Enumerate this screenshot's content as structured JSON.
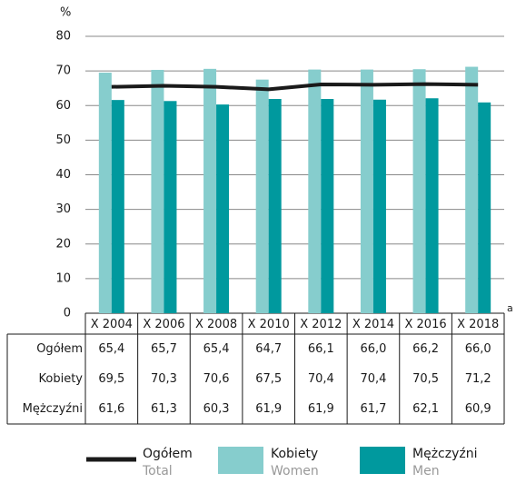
{
  "chart_data": {
    "type": "bar",
    "y_label": "%",
    "axis_note": "a",
    "categories": [
      "X 2004",
      "X 2006",
      "X 2008",
      "X 2010",
      "X 2012",
      "X 2014",
      "X 2016",
      "X 2018"
    ],
    "series": [
      {
        "name": "Ogółem",
        "sublabel": "Total",
        "type": "line",
        "color": "#1a1a1a",
        "values": [
          65.4,
          65.7,
          65.4,
          64.7,
          66.1,
          66.0,
          66.2,
          66.0
        ],
        "value_labels": [
          "65,4",
          "65,7",
          "65,4",
          "64,7",
          "66,1",
          "66,0",
          "66,2",
          "66,0"
        ]
      },
      {
        "name": "Kobiety",
        "sublabel": "Women",
        "type": "bar",
        "color": "#86cdcd",
        "values": [
          69.5,
          70.3,
          70.6,
          67.5,
          70.4,
          70.4,
          70.5,
          71.2
        ],
        "value_labels": [
          "69,5",
          "70,3",
          "70,6",
          "67,5",
          "70,4",
          "70,4",
          "70,5",
          "71,2"
        ]
      },
      {
        "name": "Mężczyźni",
        "sublabel": "Men",
        "type": "bar",
        "color": "#00999e",
        "values": [
          61.6,
          61.3,
          60.3,
          61.9,
          61.9,
          61.7,
          62.1,
          60.9
        ],
        "value_labels": [
          "61,6",
          "61,3",
          "60,3",
          "61,9",
          "61,9",
          "61,7",
          "62,1",
          "60,9"
        ]
      }
    ],
    "ylim": [
      0,
      80
    ],
    "yticks": [
      0,
      10,
      20,
      30,
      40,
      50,
      60,
      70,
      80
    ],
    "grid": true
  }
}
